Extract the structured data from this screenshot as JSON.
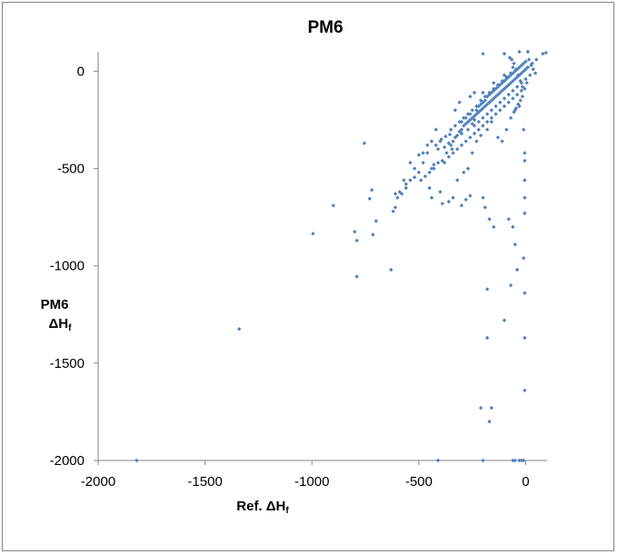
{
  "chart_data": {
    "type": "scatter",
    "title": "PM6",
    "xlabel": "Ref. ΔH",
    "xlabel_subscript": "f",
    "ylabel_line1": "PM6",
    "ylabel_line2": "ΔH",
    "ylabel_subscript": "f",
    "xlim": [
      -2000,
      100
    ],
    "ylim": [
      -2000,
      100
    ],
    "x_ticks": [
      -2000,
      -1500,
      -1000,
      -500,
      0
    ],
    "x_tick_labels": [
      "-2000",
      "-1500",
      "-1000",
      "-500",
      "0"
    ],
    "y_ticks": [
      -2000,
      -1500,
      -1000,
      -500,
      0
    ],
    "y_tick_labels": [
      "-2000",
      "-1500",
      "-1000",
      "-500",
      "0"
    ],
    "grid": false,
    "legend": "none",
    "marker_color": "#4f81bd",
    "points": [
      [
        -1820,
        -2000
      ],
      [
        -1340,
        -1325
      ],
      [
        -995,
        -835
      ],
      [
        -900,
        -690
      ],
      [
        -800,
        -825
      ],
      [
        -790,
        -870
      ],
      [
        -790,
        -1055
      ],
      [
        -755,
        -370
      ],
      [
        -730,
        -655
      ],
      [
        -720,
        -610
      ],
      [
        -715,
        -840
      ],
      [
        -700,
        -770
      ],
      [
        -630,
        -1020
      ],
      [
        -620,
        -720
      ],
      [
        -600,
        -650
      ],
      [
        -610,
        -700
      ],
      [
        -560,
        -600
      ],
      [
        -540,
        -560
      ],
      [
        -520,
        -545
      ],
      [
        -500,
        -520
      ],
      [
        -480,
        -470
      ],
      [
        -460,
        -420
      ],
      [
        -450,
        -600
      ],
      [
        -440,
        -500
      ],
      [
        -430,
        -480
      ],
      [
        -410,
        -470
      ],
      [
        -390,
        -460
      ],
      [
        -370,
        -420
      ],
      [
        -350,
        -380
      ],
      [
        -340,
        -360
      ],
      [
        -330,
        -340
      ],
      [
        -320,
        -330
      ],
      [
        -310,
        -310
      ],
      [
        -300,
        -300
      ],
      [
        -290,
        -280
      ],
      [
        -280,
        -270
      ],
      [
        -270,
        -260
      ],
      [
        -260,
        -250
      ],
      [
        -250,
        -240
      ],
      [
        -240,
        -230
      ],
      [
        -230,
        -220
      ],
      [
        -220,
        -210
      ],
      [
        -210,
        -200
      ],
      [
        -200,
        -190
      ],
      [
        -190,
        -180
      ],
      [
        -180,
        -170
      ],
      [
        -170,
        -160
      ],
      [
        -160,
        -150
      ],
      [
        -150,
        -140
      ],
      [
        -140,
        -130
      ],
      [
        -130,
        -120
      ],
      [
        -120,
        -110
      ],
      [
        -110,
        -100
      ],
      [
        -100,
        -90
      ],
      [
        -90,
        -80
      ],
      [
        -80,
        -70
      ],
      [
        -70,
        -60
      ],
      [
        -60,
        -50
      ],
      [
        -50,
        -40
      ],
      [
        -40,
        -30
      ],
      [
        -30,
        -20
      ],
      [
        -20,
        -10
      ],
      [
        -10,
        0
      ],
      [
        0,
        10
      ],
      [
        10,
        20
      ],
      [
        30,
        40
      ],
      [
        50,
        60
      ],
      [
        80,
        90
      ],
      [
        95,
        95
      ],
      [
        -380,
        -390
      ],
      [
        -360,
        -370
      ],
      [
        -345,
        -400
      ],
      [
        -400,
        -360
      ],
      [
        -420,
        -380
      ],
      [
        -410,
        -400
      ],
      [
        -395,
        -350
      ],
      [
        -375,
        -335
      ],
      [
        -355,
        -325
      ],
      [
        -300,
        -260
      ],
      [
        -280,
        -240
      ],
      [
        -260,
        -220
      ],
      [
        -250,
        -270
      ],
      [
        -240,
        -250
      ],
      [
        -230,
        -200
      ],
      [
        -220,
        -180
      ],
      [
        -210,
        -170
      ],
      [
        -200,
        -160
      ],
      [
        -190,
        -150
      ],
      [
        -180,
        -130
      ],
      [
        -170,
        -120
      ],
      [
        -160,
        -110
      ],
      [
        -150,
        -100
      ],
      [
        -140,
        -90
      ],
      [
        -130,
        -80
      ],
      [
        -120,
        -70
      ],
      [
        -110,
        -60
      ],
      [
        -100,
        -50
      ],
      [
        -90,
        -40
      ],
      [
        -80,
        -30
      ],
      [
        -70,
        -20
      ],
      [
        -60,
        -10
      ],
      [
        -50,
        0
      ],
      [
        -40,
        10
      ],
      [
        -30,
        20
      ],
      [
        -20,
        30
      ],
      [
        -10,
        40
      ],
      [
        0,
        50
      ],
      [
        -300,
        -320
      ],
      [
        -270,
        -300
      ],
      [
        -240,
        -280
      ],
      [
        -220,
        -260
      ],
      [
        -200,
        -240
      ],
      [
        -180,
        -220
      ],
      [
        -160,
        -200
      ],
      [
        -140,
        -180
      ],
      [
        -120,
        -160
      ],
      [
        -100,
        -140
      ],
      [
        -80,
        -120
      ],
      [
        -60,
        -100
      ],
      [
        -40,
        -80
      ],
      [
        -20,
        -60
      ],
      [
        0,
        -40
      ],
      [
        -350,
        -300
      ],
      [
        -330,
        -280
      ],
      [
        -310,
        -260
      ],
      [
        -290,
        -240
      ],
      [
        -270,
        -220
      ],
      [
        -250,
        -200
      ],
      [
        -230,
        -180
      ],
      [
        -210,
        -150
      ],
      [
        -190,
        -130
      ],
      [
        -170,
        -110
      ],
      [
        -150,
        -90
      ],
      [
        -130,
        -70
      ],
      [
        -110,
        -50
      ],
      [
        -90,
        -30
      ],
      [
        -70,
        -10
      ],
      [
        -260,
        -130
      ],
      [
        -240,
        -110
      ],
      [
        -310,
        -160
      ],
      [
        -330,
        -200
      ],
      [
        -200,
        -110
      ],
      [
        -150,
        -60
      ],
      [
        -100,
        -20
      ],
      [
        -60,
        20
      ],
      [
        -200,
        90
      ],
      [
        -100,
        90
      ],
      [
        -30,
        100
      ],
      [
        10,
        100
      ],
      [
        -500,
        -430
      ],
      [
        -460,
        -380
      ],
      [
        -420,
        -300
      ],
      [
        -440,
        -360
      ],
      [
        -480,
        -420
      ],
      [
        -520,
        -500
      ],
      [
        -540,
        -470
      ],
      [
        -570,
        -560
      ],
      [
        -590,
        -620
      ],
      [
        -610,
        -630
      ],
      [
        -440,
        -650
      ],
      [
        -400,
        -620
      ],
      [
        -390,
        -680
      ],
      [
        -360,
        -670
      ],
      [
        -340,
        -650
      ],
      [
        -320,
        -560
      ],
      [
        -290,
        -520
      ],
      [
        -270,
        -500
      ],
      [
        -250,
        -420
      ],
      [
        -230,
        -360
      ],
      [
        -210,
        -330
      ],
      [
        -180,
        -300
      ],
      [
        -160,
        -260
      ],
      [
        -130,
        -340
      ],
      [
        -110,
        -360
      ],
      [
        -90,
        -300
      ],
      [
        -70,
        -240
      ],
      [
        -50,
        -200
      ],
      [
        -30,
        -180
      ],
      [
        -10,
        -300
      ],
      [
        -5,
        -420
      ],
      [
        -5,
        -460
      ],
      [
        -5,
        -560
      ],
      [
        -5,
        -650
      ],
      [
        -5,
        -730
      ],
      [
        -10,
        -960
      ],
      [
        -5,
        -1140
      ],
      [
        -5,
        -1370
      ],
      [
        -5,
        -1640
      ],
      [
        -300,
        -690
      ],
      [
        -280,
        -660
      ],
      [
        -260,
        -640
      ],
      [
        -200,
        -650
      ],
      [
        -190,
        -700
      ],
      [
        -170,
        -760
      ],
      [
        -150,
        -800
      ],
      [
        -80,
        -760
      ],
      [
        -60,
        -800
      ],
      [
        -50,
        -890
      ],
      [
        -40,
        -1020
      ],
      [
        -70,
        -1100
      ],
      [
        -100,
        -1280
      ],
      [
        -180,
        -1120
      ],
      [
        -180,
        -1370
      ],
      [
        -210,
        -1730
      ],
      [
        -160,
        -1730
      ],
      [
        -170,
        -1800
      ],
      [
        -200,
        -2000
      ],
      [
        -410,
        -2000
      ],
      [
        -50,
        -2000
      ],
      [
        -30,
        -2000
      ],
      [
        -20,
        -2000
      ],
      [
        -10,
        -2000
      ],
      [
        -60,
        -2000
      ],
      [
        -560,
        -580
      ],
      [
        -580,
        -630
      ],
      [
        -490,
        -560
      ],
      [
        -470,
        -540
      ],
      [
        -450,
        -520
      ],
      [
        -430,
        -500
      ],
      [
        -380,
        -470
      ],
      [
        -360,
        -440
      ],
      [
        -340,
        -420
      ],
      [
        -320,
        -400
      ],
      [
        -300,
        -380
      ],
      [
        -280,
        -360
      ],
      [
        -260,
        -340
      ],
      [
        -240,
        -320
      ],
      [
        -220,
        -300
      ],
      [
        -200,
        -280
      ],
      [
        -180,
        -260
      ],
      [
        -160,
        -240
      ],
      [
        -140,
        -220
      ],
      [
        -120,
        -200
      ],
      [
        -100,
        -180
      ],
      [
        -80,
        -160
      ],
      [
        -60,
        -140
      ],
      [
        -40,
        -120
      ],
      [
        -20,
        -100
      ],
      [
        -15,
        -80
      ],
      [
        -25,
        -50
      ],
      [
        -35,
        -20
      ],
      [
        -45,
        10
      ],
      [
        -55,
        40
      ],
      [
        -65,
        60
      ],
      [
        -75,
        70
      ],
      [
        15,
        60
      ],
      [
        25,
        30
      ],
      [
        35,
        10
      ],
      [
        45,
        -10
      ],
      [
        20,
        -20
      ],
      [
        5,
        -60
      ],
      [
        -5,
        -90
      ],
      [
        -15,
        -130
      ],
      [
        -25,
        -150
      ],
      [
        -35,
        -170
      ],
      [
        -45,
        -190
      ],
      [
        -55,
        -210
      ]
    ]
  }
}
